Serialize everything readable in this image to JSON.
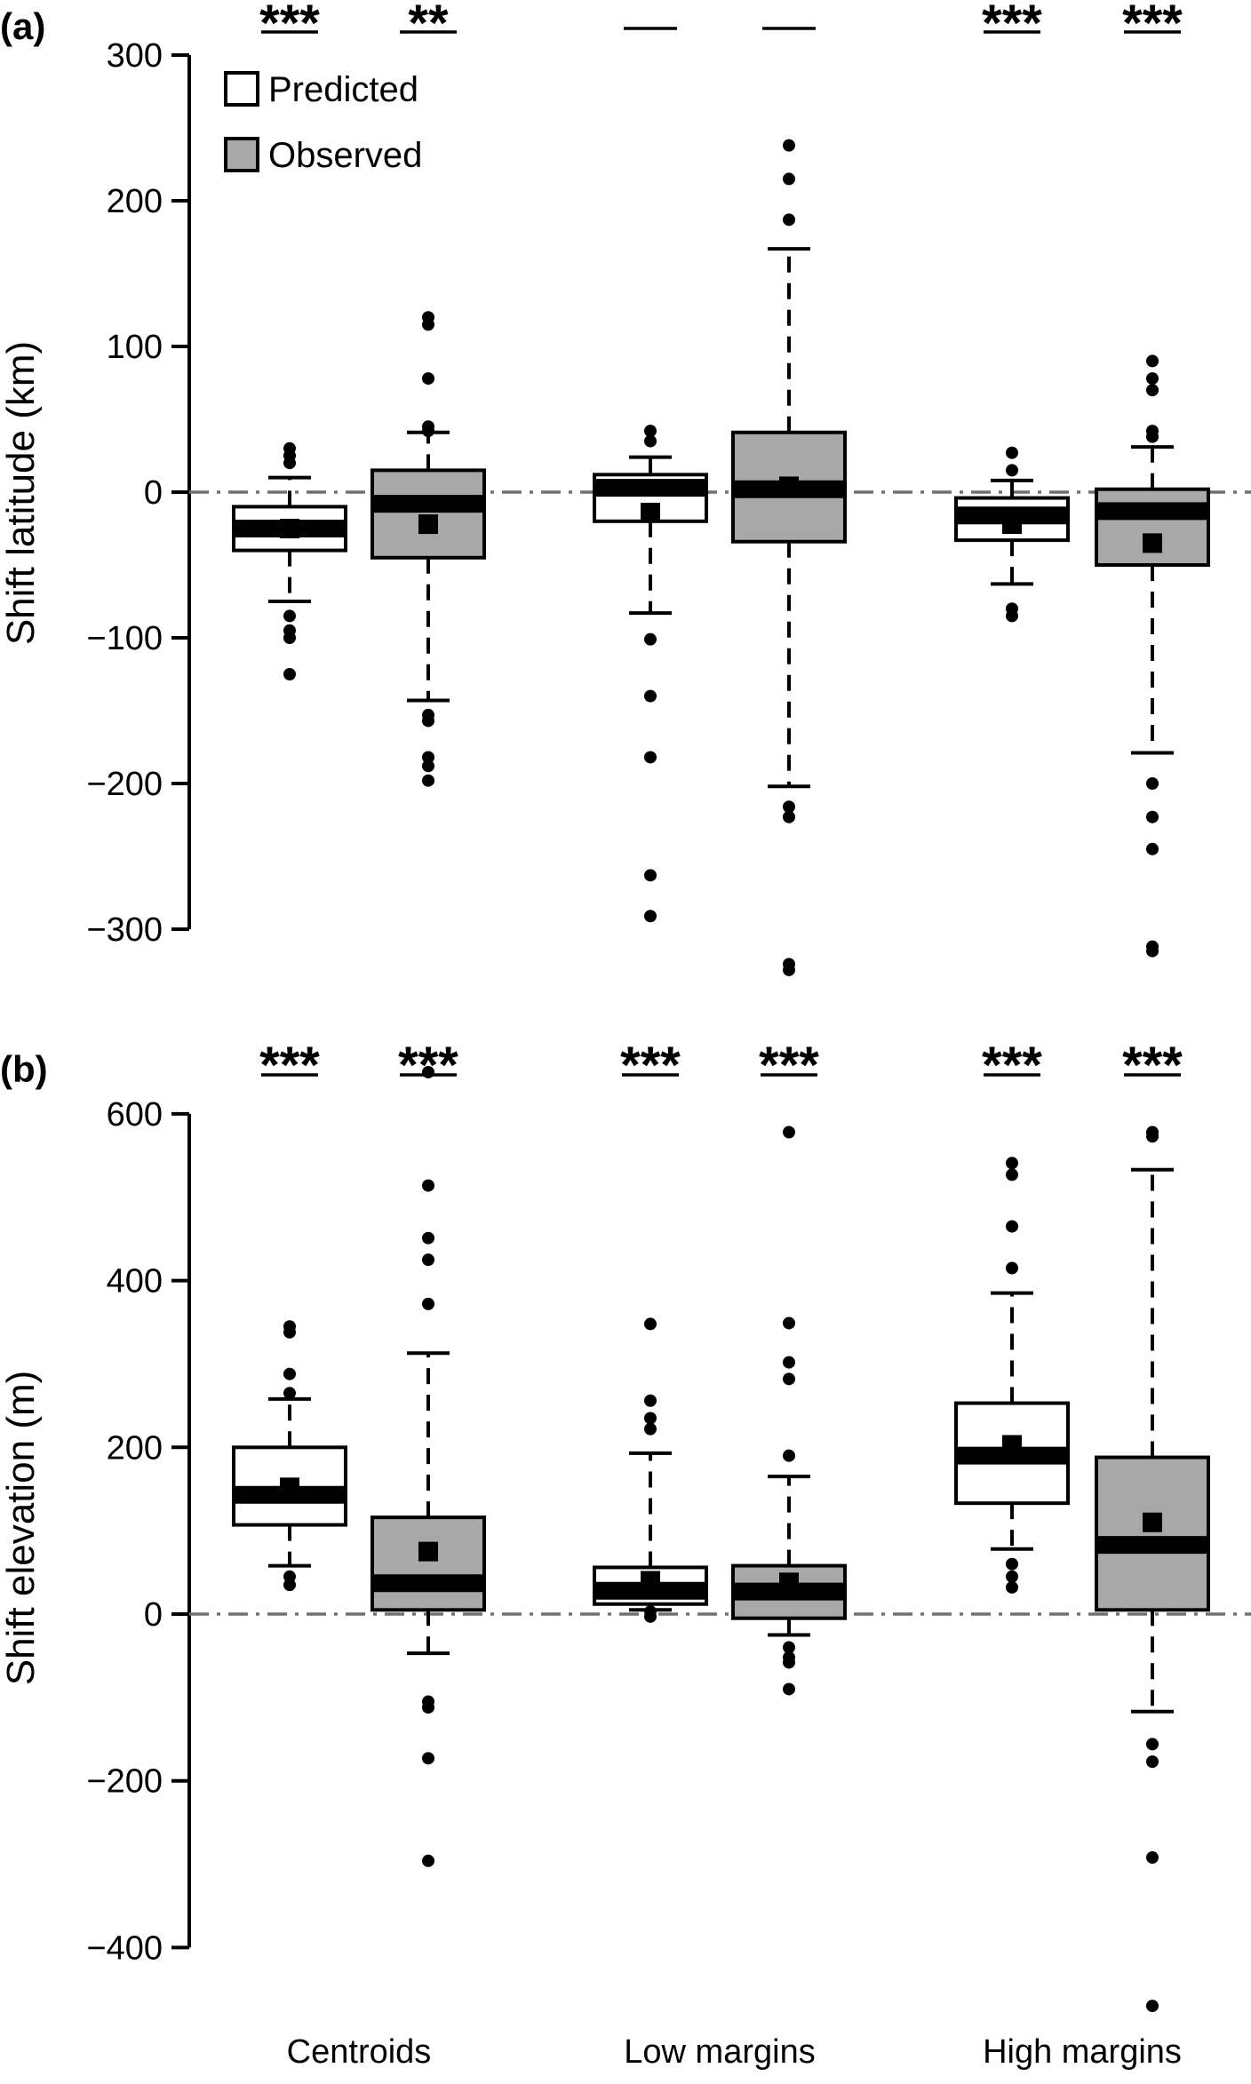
{
  "chart_data": [
    {
      "type": "boxplot",
      "panel_label": "(a)",
      "ylabel": "Shift latitude (km)",
      "ylim": [
        -300,
        300
      ],
      "yticks": [
        300,
        200,
        100,
        0,
        -100,
        -200,
        -300
      ],
      "ytick_labels": [
        "300",
        "200",
        "100",
        "0",
        "−100",
        "−200",
        "−300"
      ],
      "reference_line": 0,
      "categories": [
        "Centroids",
        "Low margins",
        "High margins"
      ],
      "legend": {
        "placement": "top-left",
        "entries": [
          {
            "name": "Predicted",
            "color": "#ffffff"
          },
          {
            "name": "Observed",
            "color": "#a8a8a8"
          }
        ]
      },
      "boxes": [
        {
          "category": "Centroids",
          "series": "Predicted",
          "significance": "***",
          "q1": -40,
          "median": -25,
          "q3": -10,
          "whisker_low": -75,
          "whisker_high": 10,
          "mean": -25,
          "outliers": [
            30,
            25,
            20,
            -85,
            -95,
            -100,
            -125
          ]
        },
        {
          "category": "Centroids",
          "series": "Observed",
          "significance": "**",
          "q1": -45,
          "median": -8,
          "q3": 15,
          "whisker_low": -143,
          "whisker_high": 41,
          "mean": -22,
          "outliers": [
            120,
            115,
            78,
            45,
            42,
            -153,
            -157,
            -182,
            -188,
            -198
          ]
        },
        {
          "category": "Low margins",
          "series": "Predicted",
          "significance": "—",
          "q1": -20,
          "median": 3,
          "q3": 12,
          "whisker_low": -83,
          "whisker_high": 24,
          "mean": -14,
          "outliers": [
            42,
            35,
            -101,
            -140,
            -182,
            -263,
            -291
          ]
        },
        {
          "category": "Low margins",
          "series": "Observed",
          "significance": "—",
          "q1": -34,
          "median": 2,
          "q3": 41,
          "whisker_low": -202,
          "whisker_high": 167,
          "mean": 4,
          "outliers": [
            238,
            215,
            187,
            -216,
            -223,
            -324,
            -328
          ]
        },
        {
          "category": "High margins",
          "series": "Predicted",
          "significance": "***",
          "q1": -33,
          "median": -16,
          "q3": -4,
          "whisker_low": -63,
          "whisker_high": 8,
          "mean": -22,
          "outliers": [
            27,
            15,
            -80,
            -85
          ]
        },
        {
          "category": "High margins",
          "series": "Observed",
          "significance": "***",
          "q1": -50,
          "median": -13,
          "q3": 2,
          "whisker_low": -179,
          "whisker_high": 31,
          "mean": -35,
          "outliers": [
            90,
            78,
            70,
            42,
            38,
            -200,
            -223,
            -245,
            -312,
            -315
          ]
        }
      ]
    },
    {
      "type": "boxplot",
      "panel_label": "(b)",
      "ylabel": "Shift elevation (m)",
      "ylim": [
        -400,
        600
      ],
      "yticks": [
        600,
        400,
        200,
        0,
        -200,
        -400
      ],
      "ytick_labels": [
        "600",
        "400",
        "200",
        "0",
        "−200",
        "−400"
      ],
      "reference_line": 0,
      "categories": [
        "Centroids",
        "Low margins",
        "High margins"
      ],
      "boxes": [
        {
          "category": "Centroids",
          "series": "Predicted",
          "significance": "***",
          "q1": 107,
          "median": 143,
          "q3": 200,
          "whisker_low": 58,
          "whisker_high": 258,
          "mean": 152,
          "outliers": [
            345,
            338,
            288,
            265,
            45,
            35
          ]
        },
        {
          "category": "Centroids",
          "series": "Observed",
          "significance": "***",
          "q1": 5,
          "median": 37,
          "q3": 116,
          "whisker_low": -47,
          "whisker_high": 313,
          "mean": 75,
          "outliers": [
            650,
            514,
            451,
            425,
            372,
            -105,
            -112,
            -173,
            -296
          ]
        },
        {
          "category": "Low margins",
          "series": "Predicted",
          "significance": "***",
          "q1": 12,
          "median": 28,
          "q3": 56,
          "whisker_low": 5,
          "whisker_high": 193,
          "mean": 40,
          "outliers": [
            348,
            256,
            235,
            222,
            3,
            -3
          ]
        },
        {
          "category": "Low margins",
          "series": "Observed",
          "significance": "***",
          "q1": -5,
          "median": 27,
          "q3": 58,
          "whisker_low": -25,
          "whisker_high": 165,
          "mean": 38,
          "outliers": [
            578,
            349,
            302,
            282,
            190,
            -40,
            -52,
            -58,
            -90
          ]
        },
        {
          "category": "High margins",
          "series": "Predicted",
          "significance": "***",
          "q1": 133,
          "median": 190,
          "q3": 253,
          "whisker_low": 78,
          "whisker_high": 385,
          "mean": 203,
          "outliers": [
            541,
            527,
            465,
            415,
            60,
            45,
            32
          ]
        },
        {
          "category": "High margins",
          "series": "Observed",
          "significance": "***",
          "q1": 5,
          "median": 83,
          "q3": 188,
          "whisker_low": -117,
          "whisker_high": 533,
          "mean": 110,
          "outliers": [
            578,
            573,
            -156,
            -177,
            -292,
            -470
          ]
        }
      ]
    }
  ]
}
